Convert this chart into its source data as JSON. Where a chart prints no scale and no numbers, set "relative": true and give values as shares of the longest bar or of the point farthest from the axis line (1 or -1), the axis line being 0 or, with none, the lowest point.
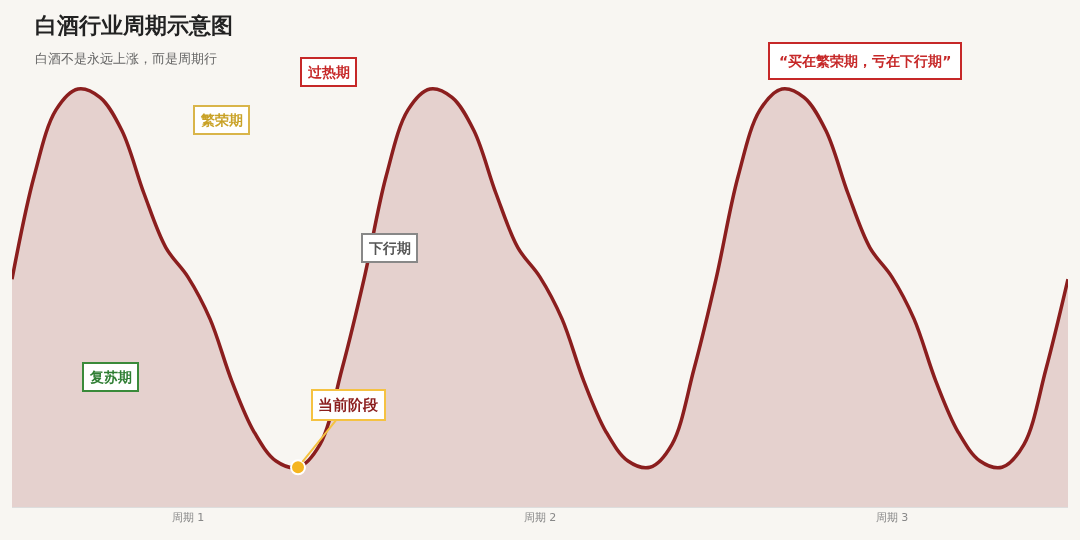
{
  "chart_data": {
    "type": "area",
    "relative": true,
    "title": "白酒行业周期示意图",
    "subtitle": "白酒不是永远上涨，而是周期行",
    "categories": [
      null,
      null,
      null,
      null,
      null,
      null,
      null,
      null,
      "周期 1",
      null,
      null,
      null,
      null,
      null,
      null,
      null,
      null,
      null,
      null,
      null,
      null,
      null,
      null,
      null,
      "周期 2",
      null,
      null,
      null,
      null,
      null,
      null,
      null,
      null,
      null,
      null,
      null,
      null,
      null,
      null,
      null,
      "周期 3",
      null,
      null,
      null,
      null,
      null,
      null,
      null,
      null
    ],
    "series": [
      {
        "color": "#8b1e1e",
        "values": [
          0.545,
          0.79,
          0.95,
          1,
          0.98,
          0.9,
          0.75,
          0.62,
          0.55,
          0.45,
          0.3,
          0.18,
          0.11,
          0.095,
          0.15,
          0.33,
          0.545,
          0.79,
          0.95,
          1,
          0.98,
          0.9,
          0.75,
          0.62,
          0.55,
          0.45,
          0.3,
          0.18,
          0.11,
          0.095,
          0.15,
          0.33,
          0.545,
          0.79,
          0.95,
          1,
          0.98,
          0.9,
          0.75,
          0.62,
          0.55,
          0.45,
          0.3,
          0.18,
          0.11,
          0.095,
          0.15,
          0.33,
          0.545
        ]
      },
      {
        "type": "scatter",
        "color": "#f5b520",
        "values": [
          null,
          null,
          null,
          null,
          null,
          null,
          null,
          null,
          null,
          null,
          null,
          null,
          null,
          0.095,
          null,
          null,
          null,
          null,
          null,
          null,
          null,
          null,
          null,
          null,
          null,
          null,
          null,
          null,
          null,
          null,
          null,
          null,
          null,
          null,
          null,
          null,
          null,
          null,
          null,
          null,
          null,
          null,
          null,
          null,
          null,
          null,
          null,
          null,
          null
        ]
      }
    ],
    "annotations": [
      "复苏期",
      "繁荣期",
      "过热期",
      "下行期",
      "当前阶段",
      "“买在繁荣期，亏在下行期”"
    ],
    "grid": false
  }
}
